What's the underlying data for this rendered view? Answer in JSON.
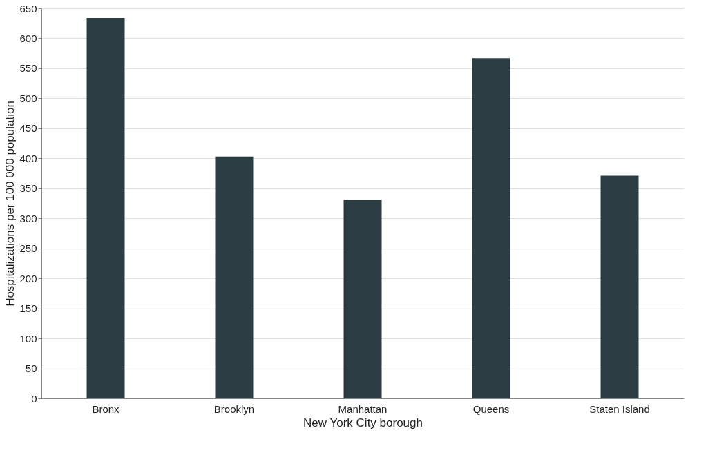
{
  "chart_data": {
    "type": "bar",
    "xlabel": "New York City borough",
    "ylabel": "Hospitalizations per 100 000 population",
    "categories": [
      "Bronx",
      "Brooklyn",
      "Manhattan",
      "Queens",
      "Staten Island"
    ],
    "series": [
      {
        "color": "#2b3d42",
        "values": [
          634,
          403,
          331,
          567,
          371
        ]
      }
    ],
    "ylim": [
      0,
      650
    ],
    "yticks": [
      0,
      50,
      100,
      150,
      200,
      250,
      300,
      350,
      400,
      450,
      500,
      550,
      600,
      650
    ],
    "grid": "y",
    "legend": false
  }
}
